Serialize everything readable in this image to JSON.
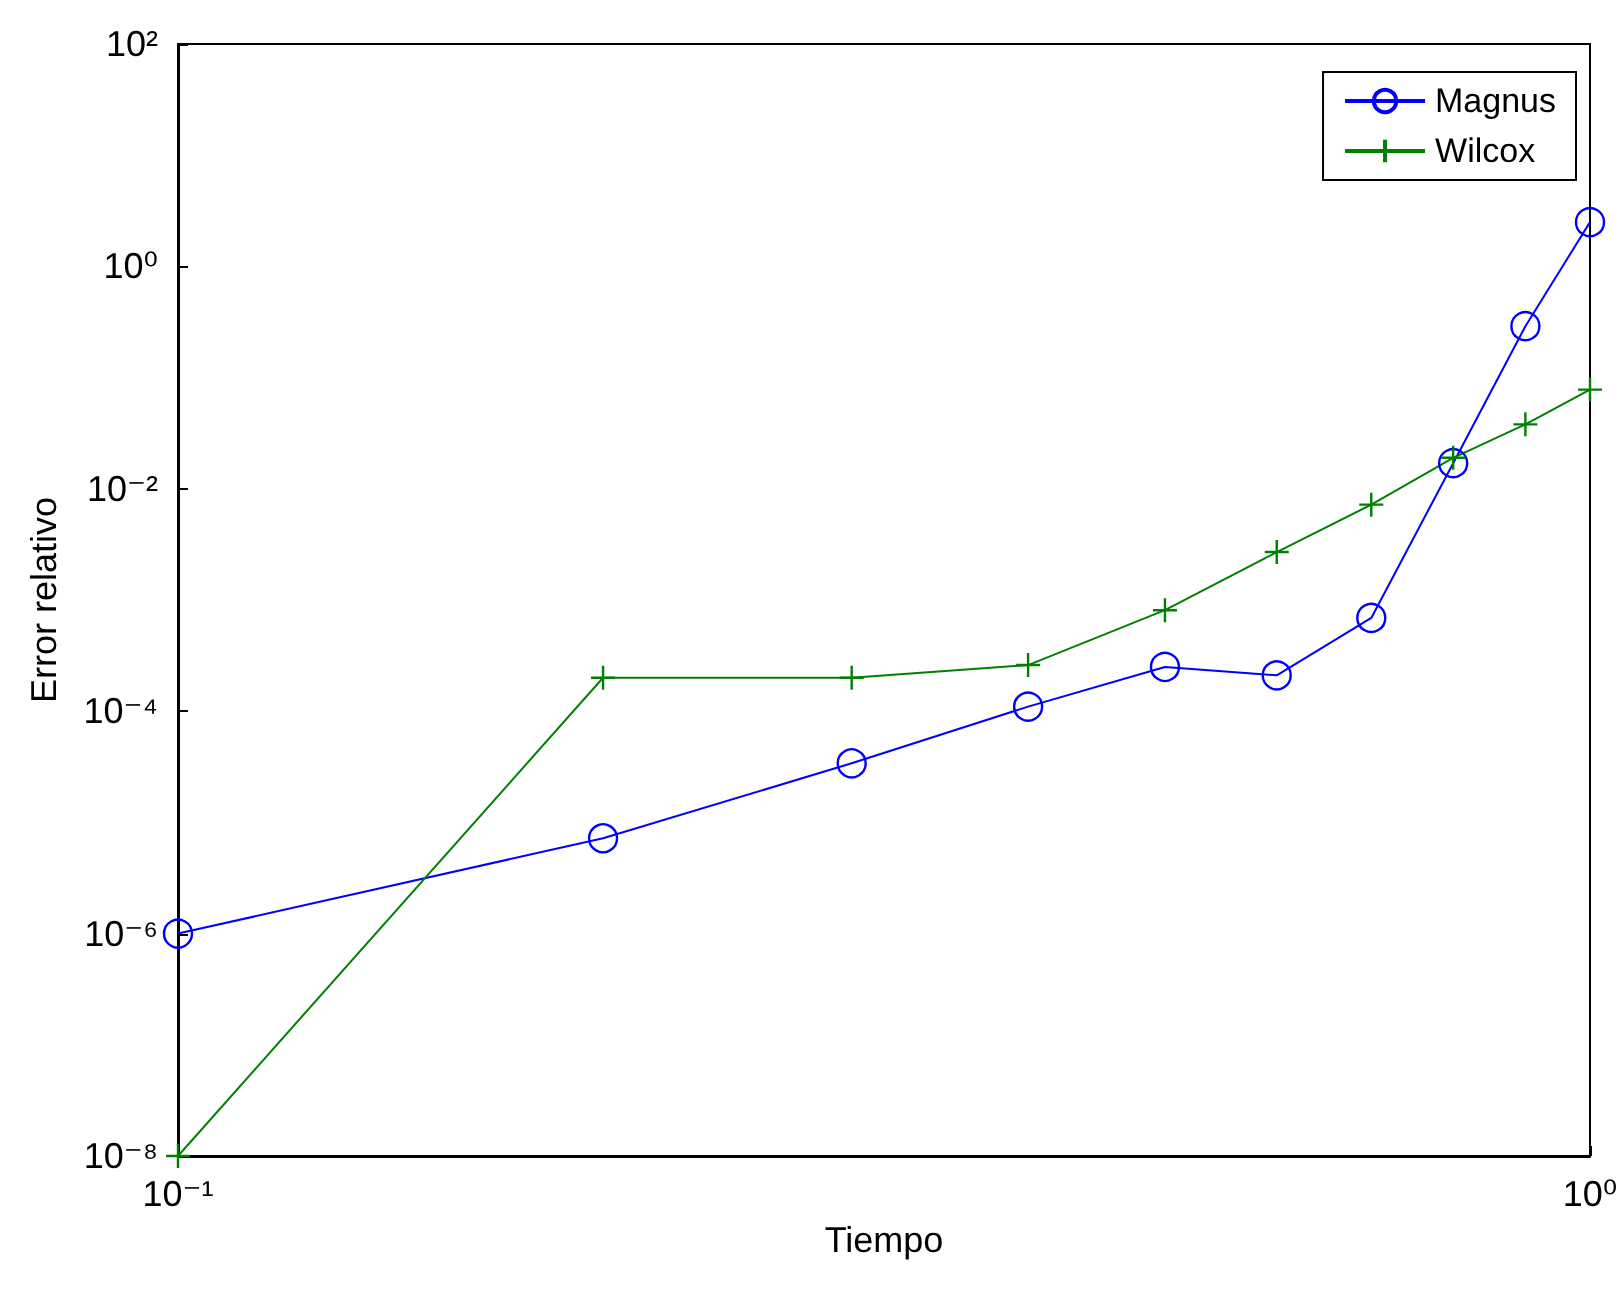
{
  "chart_data": {
    "type": "line",
    "xlabel": "Tiempo",
    "ylabel": "Error relativo",
    "log": "xy",
    "grid": false,
    "legend": "top right",
    "x": [
      0.1,
      0.2,
      0.3,
      0.4,
      0.5,
      0.6,
      0.7,
      0.8,
      0.9,
      1.0
    ],
    "xlim": [
      0.1,
      1
    ],
    "xticks": [
      {
        "value": 0.1,
        "label": "10⁻¹"
      },
      {
        "value": 1,
        "label": "10⁰"
      }
    ],
    "ylim": [
      1e-08,
      100
    ],
    "yticks": [
      {
        "value": 1e-08,
        "label": "10⁻⁸"
      },
      {
        "value": 1e-06,
        "label": "10⁻⁶"
      },
      {
        "value": 0.0001,
        "label": "10⁻⁴"
      },
      {
        "value": 0.01,
        "label": "10⁻²"
      },
      {
        "value": 1,
        "label": "10⁰"
      },
      {
        "value": 100,
        "label": "10²"
      }
    ],
    "series": [
      {
        "name": "Magnus",
        "color": "#0000ff",
        "marker": "circle",
        "values": [
          1e-06,
          7.2e-06,
          3.4e-05,
          0.00011,
          0.00025,
          0.00021,
          0.00069,
          0.017,
          0.29,
          2.5
        ]
      },
      {
        "name": "Wilcox",
        "color": "#008000",
        "marker": "cross",
        "values": [
          1e-08,
          0.0002,
          0.0002,
          0.00026,
          0.00081,
          0.0027,
          0.0072,
          0.019,
          0.038,
          0.078
        ]
      }
    ]
  }
}
